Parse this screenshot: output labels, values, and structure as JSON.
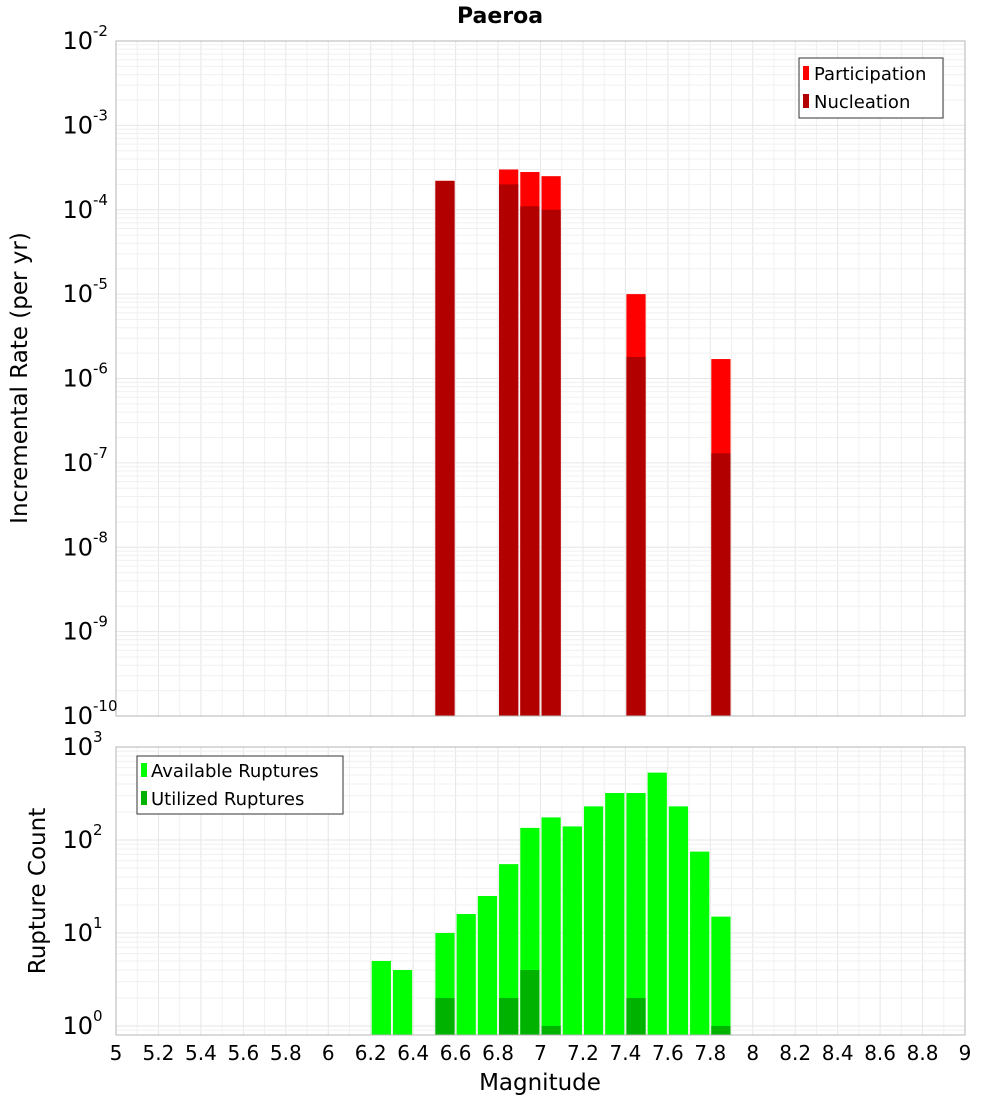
{
  "title": "Paeroa",
  "xlabel": "Magnitude",
  "chart_data": [
    {
      "type": "bar",
      "title": "Paeroa",
      "xlabel": "",
      "ylabel": "Incremental Rate (per yr)",
      "yscale": "log",
      "ylim": [
        1e-10,
        0.01
      ],
      "xlim": [
        5,
        9
      ],
      "bin_width": 0.1,
      "grid": true,
      "legend_position": "top-right",
      "yticks": [
        {
          "base": "10",
          "exp": "-2"
        },
        {
          "base": "10",
          "exp": "-3"
        },
        {
          "base": "10",
          "exp": "-4"
        },
        {
          "base": "10",
          "exp": "-5"
        },
        {
          "base": "10",
          "exp": "-6"
        },
        {
          "base": "10",
          "exp": "-7"
        },
        {
          "base": "10",
          "exp": "-8"
        },
        {
          "base": "10",
          "exp": "-9"
        },
        {
          "base": "10",
          "exp": "-10"
        }
      ],
      "series": [
        {
          "name": "Participation",
          "color": "#ff0000",
          "points": [
            {
              "x": 6.55,
              "y": 0.00022
            },
            {
              "x": 6.85,
              "y": 0.0003
            },
            {
              "x": 6.95,
              "y": 0.00028
            },
            {
              "x": 7.05,
              "y": 0.00025
            },
            {
              "x": 7.45,
              "y": 1e-05
            },
            {
              "x": 7.85,
              "y": 1.7e-06
            }
          ]
        },
        {
          "name": "Nucleation",
          "color": "#b20000",
          "points": [
            {
              "x": 6.55,
              "y": 0.00022
            },
            {
              "x": 6.85,
              "y": 0.0002
            },
            {
              "x": 6.95,
              "y": 0.00011
            },
            {
              "x": 7.05,
              "y": 0.0001
            },
            {
              "x": 7.45,
              "y": 1.8e-06
            },
            {
              "x": 7.85,
              "y": 1.3e-07
            }
          ]
        }
      ]
    },
    {
      "type": "bar",
      "xlabel": "Magnitude",
      "ylabel": "Rupture Count",
      "yscale": "log",
      "ylim": [
        0.8,
        1000
      ],
      "xlim": [
        5,
        9
      ],
      "bin_width": 0.1,
      "grid": true,
      "legend_position": "top-left",
      "yticks": [
        {
          "base": "10",
          "exp": "3",
          "value": 1000
        },
        {
          "base": "10",
          "exp": "2",
          "value": 100
        },
        {
          "base": "10",
          "exp": "1",
          "value": 10
        },
        {
          "base": "10",
          "exp": "0",
          "value": 1
        }
      ],
      "xticks": [
        "5",
        "5.2",
        "5.4",
        "5.6",
        "5.8",
        "6",
        "6.2",
        "6.4",
        "6.6",
        "6.8",
        "7",
        "7.2",
        "7.4",
        "7.6",
        "7.8",
        "8",
        "8.2",
        "8.4",
        "8.6",
        "8.8",
        "9"
      ],
      "series": [
        {
          "name": "Available Ruptures",
          "color": "#00ff00",
          "points": [
            {
              "x": 6.25,
              "y": 5
            },
            {
              "x": 6.35,
              "y": 4
            },
            {
              "x": 6.55,
              "y": 10
            },
            {
              "x": 6.65,
              "y": 16
            },
            {
              "x": 6.75,
              "y": 25
            },
            {
              "x": 6.85,
              "y": 55
            },
            {
              "x": 6.95,
              "y": 135
            },
            {
              "x": 7.05,
              "y": 175
            },
            {
              "x": 7.15,
              "y": 140
            },
            {
              "x": 7.25,
              "y": 230
            },
            {
              "x": 7.35,
              "y": 320
            },
            {
              "x": 7.45,
              "y": 320
            },
            {
              "x": 7.55,
              "y": 530
            },
            {
              "x": 7.65,
              "y": 230
            },
            {
              "x": 7.75,
              "y": 75
            },
            {
              "x": 7.85,
              "y": 15
            }
          ]
        },
        {
          "name": "Utilized Ruptures",
          "color": "#00b200",
          "points": [
            {
              "x": 6.55,
              "y": 2
            },
            {
              "x": 6.85,
              "y": 2
            },
            {
              "x": 6.95,
              "y": 4
            },
            {
              "x": 7.05,
              "y": 1
            },
            {
              "x": 7.45,
              "y": 2
            },
            {
              "x": 7.85,
              "y": 1
            }
          ]
        }
      ]
    }
  ]
}
